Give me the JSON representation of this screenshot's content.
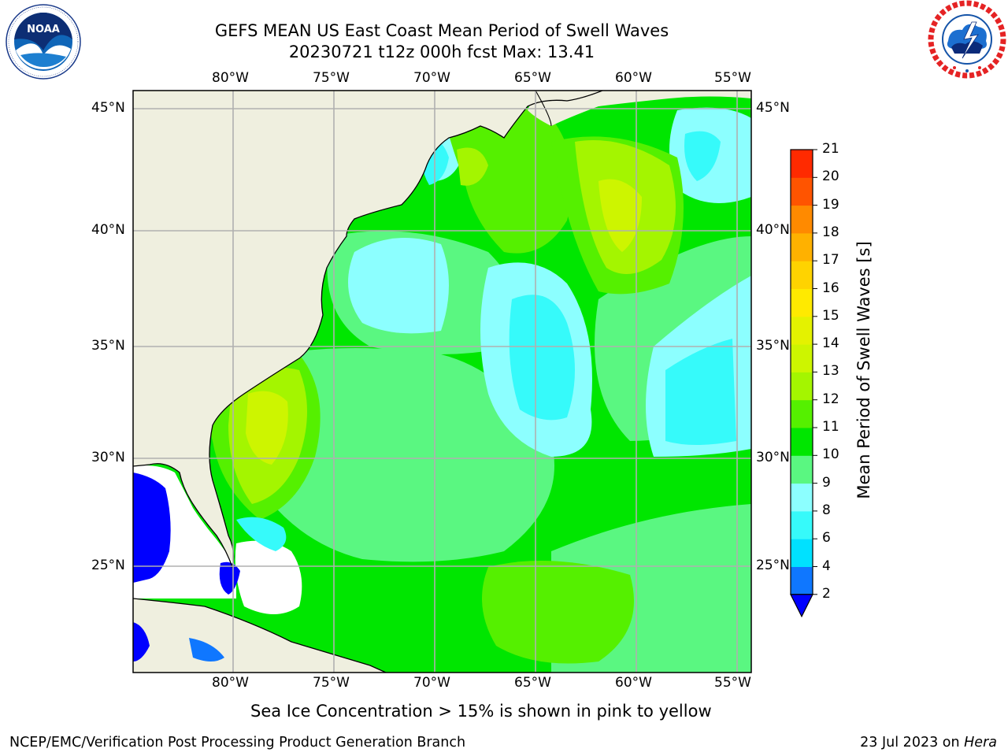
{
  "title": {
    "line1": "GEFS MEAN US East Coast Mean Period of Swell Waves",
    "line2": "20230721 t12z 000h fcst   Max: 13.41"
  },
  "map": {
    "region": "US East Coast / Western North Atlantic",
    "lon_range": [
      -85,
      -54
    ],
    "lat_range": [
      20.5,
      46
    ],
    "lon_ticks": [
      -80,
      -75,
      -70,
      -65,
      -60,
      -55
    ],
    "lat_ticks": [
      25,
      30,
      35,
      40,
      45
    ],
    "lon_labels": [
      "80°W",
      "75°W",
      "70°W",
      "65°W",
      "60°W",
      "55°W"
    ],
    "lat_labels": [
      "25°N",
      "30°N",
      "35°N",
      "40°N",
      "45°N"
    ],
    "grid": true,
    "colors": {
      "land": "#efefdf",
      "gridline": "#b0b0b0",
      "coast": "#000000"
    }
  },
  "colorbar": {
    "label": "Mean Period of Swell Waves [s]",
    "ticks": [
      "2",
      "4",
      "6",
      "8",
      "9",
      "10",
      "11",
      "12",
      "13",
      "14",
      "15",
      "16",
      "17",
      "18",
      "19",
      "20",
      "21"
    ],
    "colors": [
      "#0f77ff",
      "#00e1ff",
      "#36fafa",
      "#8cffff",
      "#5af781",
      "#00e600",
      "#55f000",
      "#a4f500",
      "#cdf500",
      "#e4f200",
      "#ffea00",
      "#ffd300",
      "#ffb100",
      "#ff8a00",
      "#ff5400",
      "#ff2a00"
    ],
    "under_color": "#0000ff"
  },
  "logos": {
    "left": {
      "icon": "noaa-logo",
      "text": "NOAA"
    },
    "right": {
      "icon": "nws-logo"
    }
  },
  "subcaption": "Sea Ice Concentration > 15% is shown in pink to yellow",
  "footer": {
    "left": "NCEP/EMC/Verification Post Processing Product Generation Branch",
    "right_prefix": "23 Jul 2023 on ",
    "right_host": "Hera"
  }
}
